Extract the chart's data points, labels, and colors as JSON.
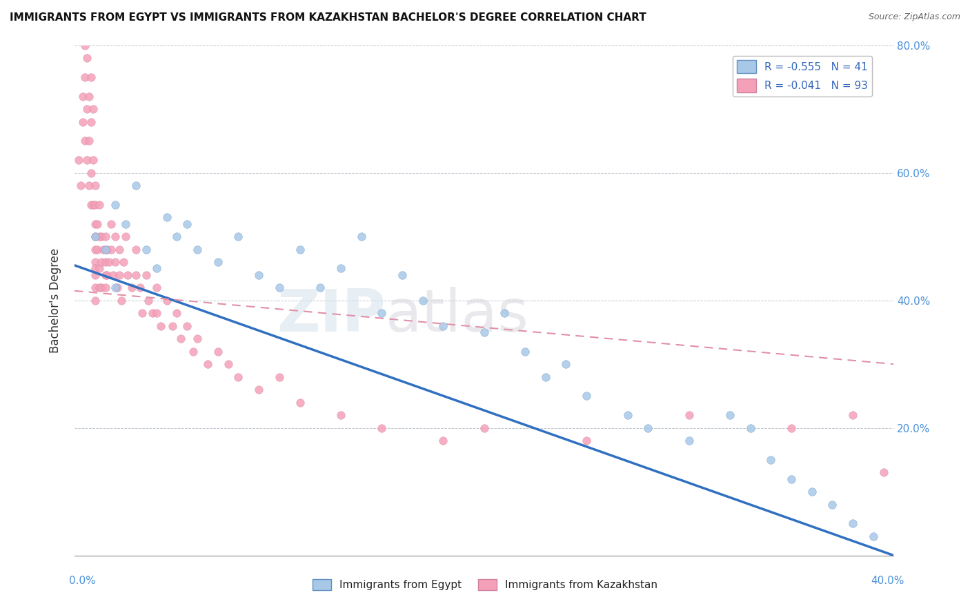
{
  "title": "IMMIGRANTS FROM EGYPT VS IMMIGRANTS FROM KAZAKHSTAN BACHELOR'S DEGREE CORRELATION CHART",
  "source": "Source: ZipAtlas.com",
  "ylabel": "Bachelor's Degree",
  "xlim": [
    0.0,
    0.4
  ],
  "ylim": [
    0.0,
    0.8
  ],
  "ytick_vals": [
    0.0,
    0.2,
    0.4,
    0.6,
    0.8
  ],
  "ytick_labels": [
    "",
    "20.0%",
    "40.0%",
    "60.0%",
    "80.0%"
  ],
  "legend_r1": "R = -0.555",
  "legend_n1": "N = 41",
  "legend_r2": "R = -0.041",
  "legend_n2": "N = 93",
  "color_egypt": "#a8c8e8",
  "color_kazakhstan": "#f4a0b8",
  "color_egypt_line": "#3070c0",
  "color_kazakhstan_line": "#e090a8",
  "egypt_scatter_x": [
    0.01,
    0.015,
    0.02,
    0.02,
    0.025,
    0.03,
    0.035,
    0.04,
    0.045,
    0.05,
    0.055,
    0.06,
    0.07,
    0.08,
    0.09,
    0.1,
    0.11,
    0.12,
    0.13,
    0.14,
    0.15,
    0.16,
    0.17,
    0.18,
    0.2,
    0.21,
    0.22,
    0.23,
    0.24,
    0.25,
    0.27,
    0.28,
    0.3,
    0.32,
    0.33,
    0.34,
    0.35,
    0.36,
    0.37,
    0.38,
    0.39
  ],
  "egypt_scatter_y": [
    0.5,
    0.48,
    0.55,
    0.42,
    0.52,
    0.58,
    0.48,
    0.45,
    0.53,
    0.5,
    0.52,
    0.48,
    0.46,
    0.5,
    0.44,
    0.42,
    0.48,
    0.42,
    0.45,
    0.5,
    0.38,
    0.44,
    0.4,
    0.36,
    0.35,
    0.38,
    0.32,
    0.28,
    0.3,
    0.25,
    0.22,
    0.2,
    0.18,
    0.22,
    0.2,
    0.15,
    0.12,
    0.1,
    0.08,
    0.05,
    0.03
  ],
  "kazakhstan_scatter_x": [
    0.002,
    0.003,
    0.004,
    0.004,
    0.005,
    0.005,
    0.005,
    0.006,
    0.006,
    0.006,
    0.007,
    0.007,
    0.007,
    0.008,
    0.008,
    0.008,
    0.008,
    0.009,
    0.009,
    0.009,
    0.01,
    0.01,
    0.01,
    0.01,
    0.01,
    0.01,
    0.01,
    0.01,
    0.01,
    0.01,
    0.011,
    0.011,
    0.012,
    0.012,
    0.012,
    0.012,
    0.013,
    0.013,
    0.013,
    0.014,
    0.015,
    0.015,
    0.015,
    0.015,
    0.016,
    0.016,
    0.017,
    0.018,
    0.018,
    0.019,
    0.02,
    0.02,
    0.021,
    0.022,
    0.022,
    0.023,
    0.024,
    0.025,
    0.026,
    0.028,
    0.03,
    0.03,
    0.032,
    0.033,
    0.035,
    0.036,
    0.038,
    0.04,
    0.04,
    0.042,
    0.045,
    0.048,
    0.05,
    0.052,
    0.055,
    0.058,
    0.06,
    0.065,
    0.07,
    0.075,
    0.08,
    0.09,
    0.1,
    0.11,
    0.13,
    0.15,
    0.18,
    0.2,
    0.25,
    0.3,
    0.35,
    0.38,
    0.395
  ],
  "kazakhstan_scatter_y": [
    0.62,
    0.58,
    0.72,
    0.68,
    0.8,
    0.75,
    0.65,
    0.78,
    0.7,
    0.62,
    0.72,
    0.65,
    0.58,
    0.75,
    0.68,
    0.6,
    0.55,
    0.7,
    0.62,
    0.55,
    0.5,
    0.48,
    0.46,
    0.44,
    0.42,
    0.55,
    0.52,
    0.58,
    0.45,
    0.4,
    0.52,
    0.48,
    0.55,
    0.5,
    0.45,
    0.42,
    0.5,
    0.46,
    0.42,
    0.48,
    0.5,
    0.46,
    0.44,
    0.42,
    0.48,
    0.44,
    0.46,
    0.52,
    0.48,
    0.44,
    0.5,
    0.46,
    0.42,
    0.48,
    0.44,
    0.4,
    0.46,
    0.5,
    0.44,
    0.42,
    0.48,
    0.44,
    0.42,
    0.38,
    0.44,
    0.4,
    0.38,
    0.42,
    0.38,
    0.36,
    0.4,
    0.36,
    0.38,
    0.34,
    0.36,
    0.32,
    0.34,
    0.3,
    0.32,
    0.3,
    0.28,
    0.26,
    0.28,
    0.24,
    0.22,
    0.2,
    0.18,
    0.2,
    0.18,
    0.22,
    0.2,
    0.22,
    0.13
  ],
  "egypt_line_x": [
    0.0,
    0.4
  ],
  "egypt_line_y": [
    0.455,
    0.0
  ],
  "kaz_line_x": [
    0.0,
    0.4
  ],
  "kaz_line_y": [
    0.415,
    0.3
  ]
}
